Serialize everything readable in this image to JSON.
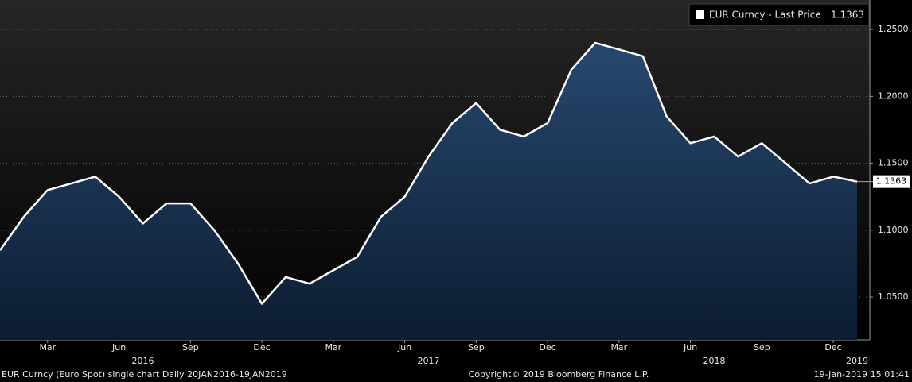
{
  "chart_data": {
    "type": "line",
    "legend": "EUR Curncy - Last Price",
    "x": [
      "2016-01",
      "2016-02",
      "2016-03",
      "2016-04",
      "2016-05",
      "2016-06",
      "2016-07",
      "2016-08",
      "2016-09",
      "2016-10",
      "2016-11",
      "2016-12",
      "2017-01",
      "2017-02",
      "2017-03",
      "2017-04",
      "2017-05",
      "2017-06",
      "2017-07",
      "2017-08",
      "2017-09",
      "2017-10",
      "2017-11",
      "2017-12",
      "2018-01",
      "2018-02",
      "2018-03",
      "2018-04",
      "2018-05",
      "2018-06",
      "2018-07",
      "2018-08",
      "2018-09",
      "2018-10",
      "2018-11",
      "2018-12",
      "2019-01"
    ],
    "series": [
      {
        "name": "EUR Curncy - Last Price",
        "color": "#ffffff",
        "values": [
          1.085,
          1.11,
          1.13,
          1.135,
          1.14,
          1.125,
          1.105,
          1.12,
          1.12,
          1.1,
          1.075,
          1.045,
          1.065,
          1.06,
          1.07,
          1.08,
          1.11,
          1.125,
          1.155,
          1.18,
          1.195,
          1.175,
          1.17,
          1.18,
          1.22,
          1.24,
          1.235,
          1.23,
          1.185,
          1.165,
          1.17,
          1.155,
          1.165,
          1.15,
          1.135,
          1.14,
          1.1363
        ]
      }
    ],
    "ylim": [
      1.018,
      1.272
    ],
    "yticks": [
      {
        "value": 1.05,
        "label": "1.0500"
      },
      {
        "value": 1.1,
        "label": "1.1000"
      },
      {
        "value": 1.15,
        "label": "1.1500"
      },
      {
        "value": 1.2,
        "label": "1.2000"
      },
      {
        "value": 1.25,
        "label": "1.2500"
      }
    ],
    "xticks": [
      {
        "value": "2016-03",
        "label": "Mar"
      },
      {
        "value": "2016-06",
        "label": "Jun"
      },
      {
        "value": "2016-09",
        "label": "Sep"
      },
      {
        "value": "2016-12",
        "label": "Dec"
      },
      {
        "value": "2017-03",
        "label": "Mar"
      },
      {
        "value": "2017-06",
        "label": "Jun"
      },
      {
        "value": "2017-09",
        "label": "Sep"
      },
      {
        "value": "2017-12",
        "label": "Dec"
      },
      {
        "value": "2018-03",
        "label": "Mar"
      },
      {
        "value": "2018-06",
        "label": "Jun"
      },
      {
        "value": "2018-09",
        "label": "Sep"
      },
      {
        "value": "2018-12",
        "label": "Dec"
      }
    ],
    "year_labels": [
      {
        "value": "2016-07",
        "label": "2016"
      },
      {
        "value": "2017-07",
        "label": "2017"
      },
      {
        "value": "2018-07",
        "label": "2018"
      },
      {
        "value": "2019-01",
        "label": "2019"
      }
    ],
    "grid": true,
    "footer_left": "EUR Curncy (Euro Spot) single chart  Daily 20JAN2016-19JAN2019",
    "footer_center": "Copyright© 2019 Bloomberg Finance L.P.",
    "footer_right": "19-Jan-2019 15:01:41"
  }
}
